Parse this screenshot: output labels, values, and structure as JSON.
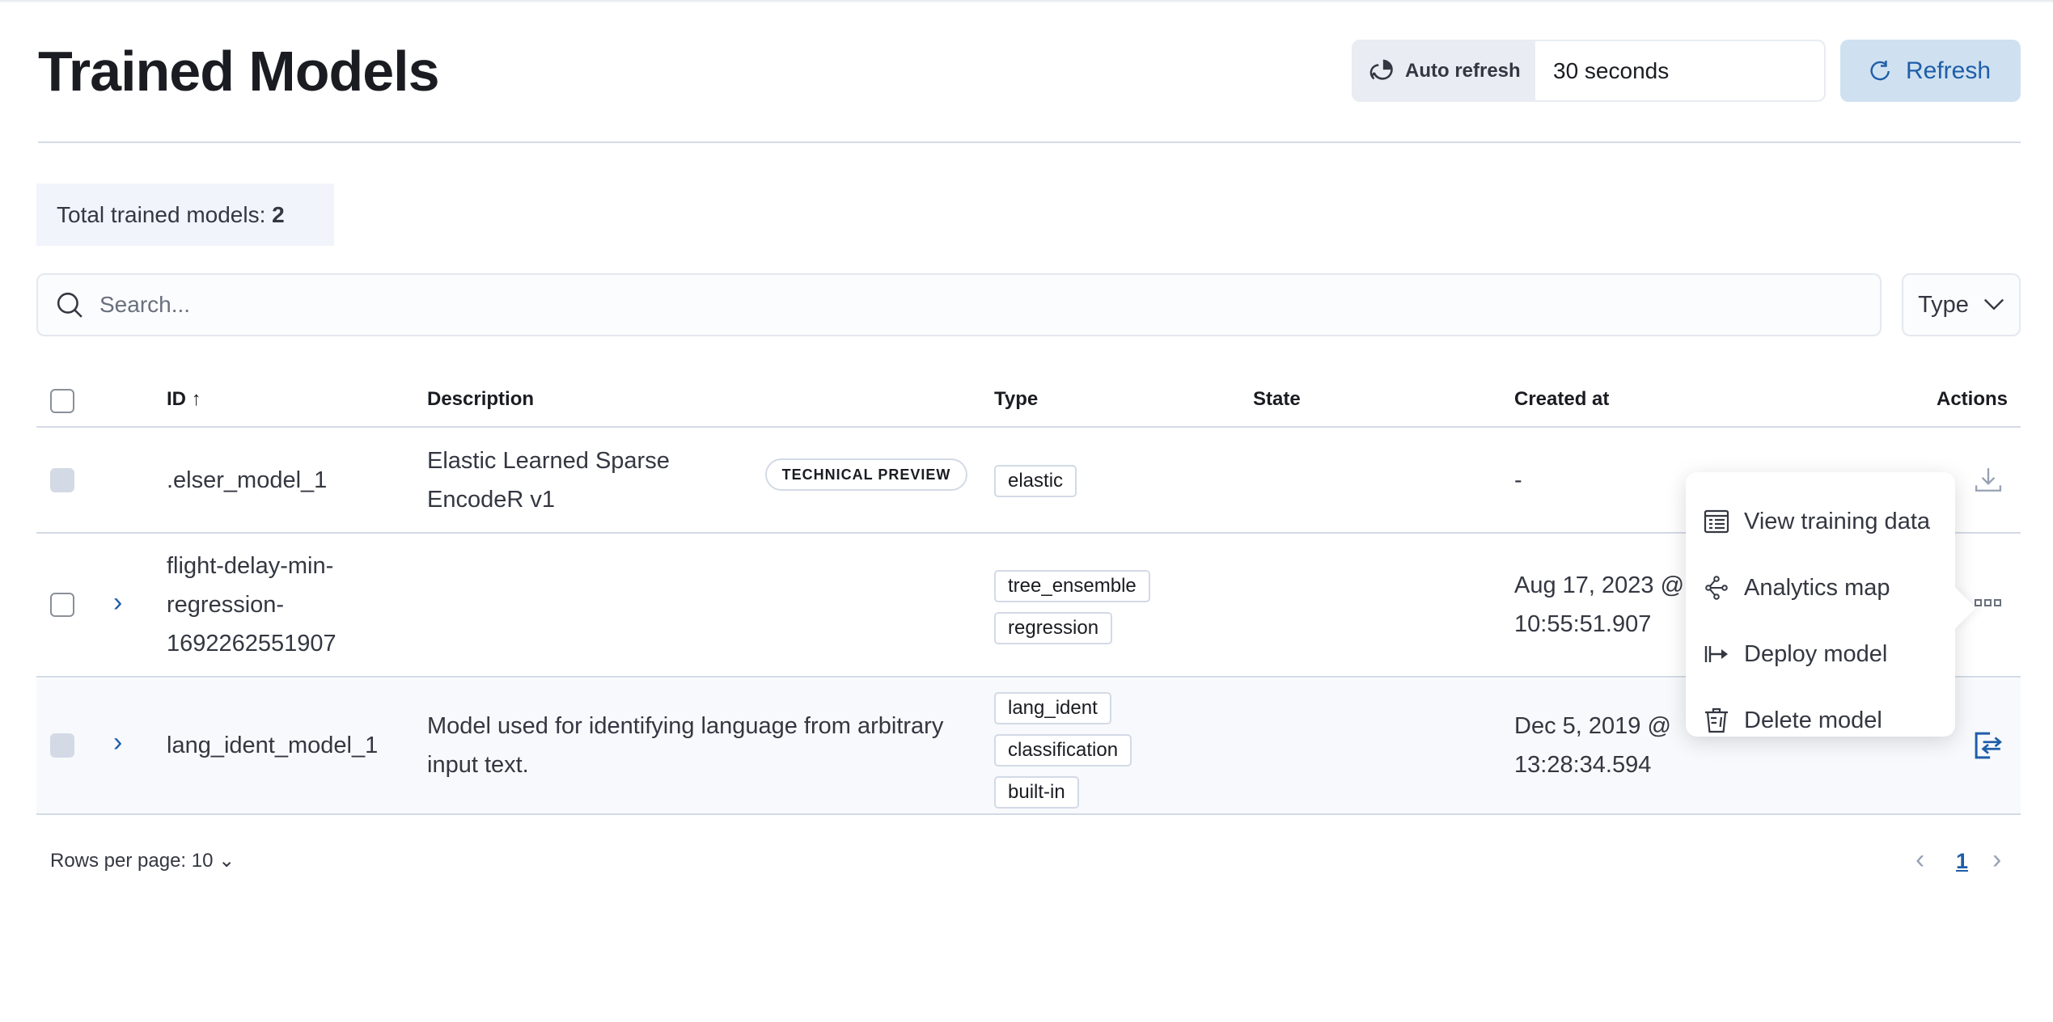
{
  "header": {
    "title": "Trained Models",
    "auto_refresh_label": "Auto refresh",
    "auto_refresh_value": "30 seconds",
    "refresh_label": "Refresh"
  },
  "summary": {
    "label": "Total trained models:",
    "count": "2"
  },
  "search": {
    "placeholder": "Search...",
    "type_filter": "Type"
  },
  "table": {
    "columns": [
      "ID",
      "Description",
      "Type",
      "State",
      "Created at",
      "Actions"
    ],
    "sort": {
      "column": "ID",
      "direction": "ascending"
    },
    "rows": [
      {
        "id": ".elser_model_1",
        "description": "Elastic Learned Sparse EncodeR v1",
        "badge": "TECHNICAL PREVIEW",
        "types": [
          "elastic"
        ],
        "state": "",
        "created": "-",
        "action_icon": "download-icon"
      },
      {
        "id": "flight-delay-min-regression-1692262551907",
        "description": "",
        "types": [
          "tree_ensemble",
          "regression"
        ],
        "state": "",
        "created": "Aug 17, 2023 @ 10:55:51.907",
        "action_icon": "more-icon"
      },
      {
        "id": "lang_ident_model_1",
        "description": "Model used for identifying language from arbitrary input text.",
        "types": [
          "lang_ident",
          "classification",
          "built-in"
        ],
        "state": "",
        "created": "Dec 5, 2019 @ 13:28:34.594",
        "action_icon": "test-model-icon"
      }
    ]
  },
  "actions_menu": [
    {
      "label": "View training data",
      "icon": "table-icon"
    },
    {
      "label": "Analytics map",
      "icon": "graph-icon"
    },
    {
      "label": "Deploy model",
      "icon": "deploy-icon"
    },
    {
      "label": "Delete model",
      "icon": "trash-icon"
    }
  ],
  "pagination": {
    "rows_per_page": "Rows per page: 10",
    "current_page": "1"
  },
  "colors": {
    "accent": "#1f5ea8",
    "refresh_bg": "#cfe1f1",
    "border": "#d3dae6"
  }
}
